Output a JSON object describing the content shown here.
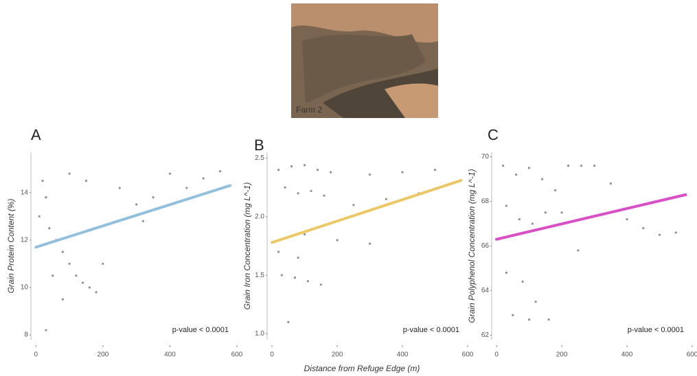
{
  "image_caption": "Farm 2",
  "x_label": "Distance from Refuge Edge (m)",
  "chart_data": [
    {
      "type": "scatter",
      "panel_label": "A",
      "y_label": "Grain Protein Content (%)",
      "annotation": "p-value < 0.0001",
      "xlim": [
        -15,
        600
      ],
      "xticks": [
        0,
        200,
        400,
        600
      ],
      "ylim": [
        7.8,
        15.7
      ],
      "yticks": [
        8,
        10,
        12,
        14
      ],
      "series": [
        {
          "x": [
            10,
            20,
            30,
            40,
            60,
            80,
            100,
            120,
            140,
            160,
            180,
            200,
            50,
            100,
            150,
            250,
            300,
            350,
            400,
            450,
            500,
            550,
            30,
            80,
            320
          ],
          "values": [
            13.0,
            14.5,
            13.8,
            12.5,
            12.0,
            11.5,
            11.0,
            10.5,
            10.2,
            10.0,
            9.8,
            11.0,
            10.5,
            14.8,
            14.5,
            14.2,
            13.5,
            13.8,
            14.8,
            14.2,
            14.6,
            14.9,
            8.2,
            9.5,
            12.8
          ],
          "color": "#444444"
        }
      ],
      "trend": {
        "x": [
          0,
          580
        ],
        "values": [
          11.7,
          14.3
        ],
        "color": "#92bfdc"
      }
    },
    {
      "type": "scatter",
      "panel_label": "B",
      "y_label": "Grain Iron Concentration (mg L^-1)",
      "annotation": "p-value < 0.0001",
      "xlim": [
        -15,
        600
      ],
      "xticks": [
        0,
        200,
        400,
        600
      ],
      "ylim": [
        0.95,
        2.55
      ],
      "yticks": [
        {
          "value": 1.0,
          "label": "1.0"
        },
        1.5,
        {
          "value": 2.0,
          "label": "2.0"
        },
        2.5
      ],
      "series": [
        {
          "x": [
            20,
            60,
            100,
            140,
            180,
            40,
            80,
            120,
            160,
            300,
            400,
            500,
            250,
            350,
            450,
            30,
            70,
            110,
            150,
            200,
            20,
            80,
            300,
            100,
            50
          ],
          "values": [
            2.4,
            2.43,
            2.44,
            2.4,
            2.38,
            2.25,
            2.2,
            2.22,
            2.18,
            2.36,
            2.38,
            2.4,
            2.1,
            2.15,
            2.2,
            1.5,
            1.48,
            1.45,
            1.42,
            1.8,
            1.7,
            1.65,
            1.77,
            1.85,
            1.1
          ],
          "color": "#444444"
        }
      ],
      "trend": {
        "x": [
          0,
          580
        ],
        "values": [
          1.78,
          2.31
        ],
        "color": "#ecc766"
      }
    },
    {
      "type": "scatter",
      "panel_label": "C",
      "y_label": "Grain Polyphenol Concentration (mg L^-1)",
      "annotation": "p-value < 0.0001",
      "xlim": [
        -15,
        600
      ],
      "xticks": [
        0,
        200,
        400,
        600
      ],
      "ylim": [
        61.8,
        70.2
      ],
      "yticks": [
        62,
        64,
        66,
        68,
        70
      ],
      "series": [
        {
          "x": [
            20,
            60,
            100,
            140,
            180,
            220,
            260,
            300,
            350,
            30,
            70,
            110,
            150,
            200,
            400,
            450,
            500,
            550,
            30,
            80,
            120,
            160,
            50,
            100,
            250
          ],
          "values": [
            69.6,
            69.2,
            69.5,
            69.0,
            68.5,
            69.6,
            69.6,
            69.6,
            68.8,
            67.8,
            67.2,
            67.0,
            67.5,
            67.5,
            67.2,
            66.8,
            66.5,
            66.6,
            64.8,
            64.4,
            63.5,
            62.7,
            62.9,
            62.7,
            65.8
          ],
          "color": "#444444"
        }
      ],
      "trend": {
        "x": [
          0,
          580
        ],
        "values": [
          66.3,
          68.3
        ],
        "color": "#d94fc6"
      }
    }
  ]
}
